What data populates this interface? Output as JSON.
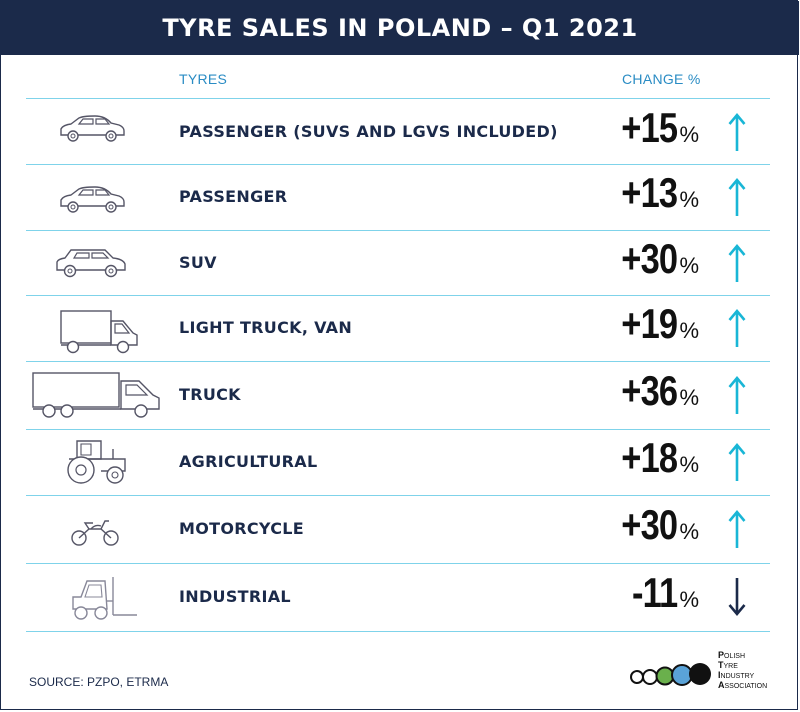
{
  "title": "TYRE SALES IN POLAND – Q1 2021",
  "columns": {
    "tyres": "TYRES",
    "change": "CHANGE %"
  },
  "chart_data": {
    "type": "table",
    "title": "TYRE SALES IN POLAND – Q1 2021",
    "columns": [
      "TYRES",
      "CHANGE %"
    ],
    "rows": [
      {
        "category": "PASSENGER (SUVS AND LGVS INCLUDED)",
        "value": 15,
        "display": "+15",
        "trend": "up",
        "icon": "car-icon"
      },
      {
        "category": "PASSENGER",
        "value": 13,
        "display": "+13",
        "trend": "up",
        "icon": "car-icon"
      },
      {
        "category": "SUV",
        "value": 30,
        "display": "+30",
        "trend": "up",
        "icon": "suv-icon"
      },
      {
        "category": "LIGHT TRUCK, VAN",
        "value": 19,
        "display": "+19",
        "trend": "up",
        "icon": "van-icon"
      },
      {
        "category": "TRUCK",
        "value": 36,
        "display": "+36",
        "trend": "up",
        "icon": "truck-icon"
      },
      {
        "category": "AGRICULTURAL",
        "value": 18,
        "display": "+18",
        "trend": "up",
        "icon": "tractor-icon"
      },
      {
        "category": "MOTORCYCLE",
        "value": 30,
        "display": "+30",
        "trend": "up",
        "icon": "motorcycle-icon"
      },
      {
        "category": "INDUSTRIAL",
        "value": -11,
        "display": "-11",
        "trend": "down",
        "icon": "forklift-icon"
      }
    ],
    "unit": "%"
  },
  "colors": {
    "navy": "#1b2a4a",
    "accent": "#2a8cc4",
    "up": "#19b6d6",
    "down": "#1b2a4a",
    "rule": "#7fd3ea"
  },
  "source": "SOURCE: PZPO, ETRMA",
  "logo": {
    "lines": [
      "POLISH",
      "TYRE",
      "INDUSTRY",
      "ASSOCIATION"
    ]
  }
}
